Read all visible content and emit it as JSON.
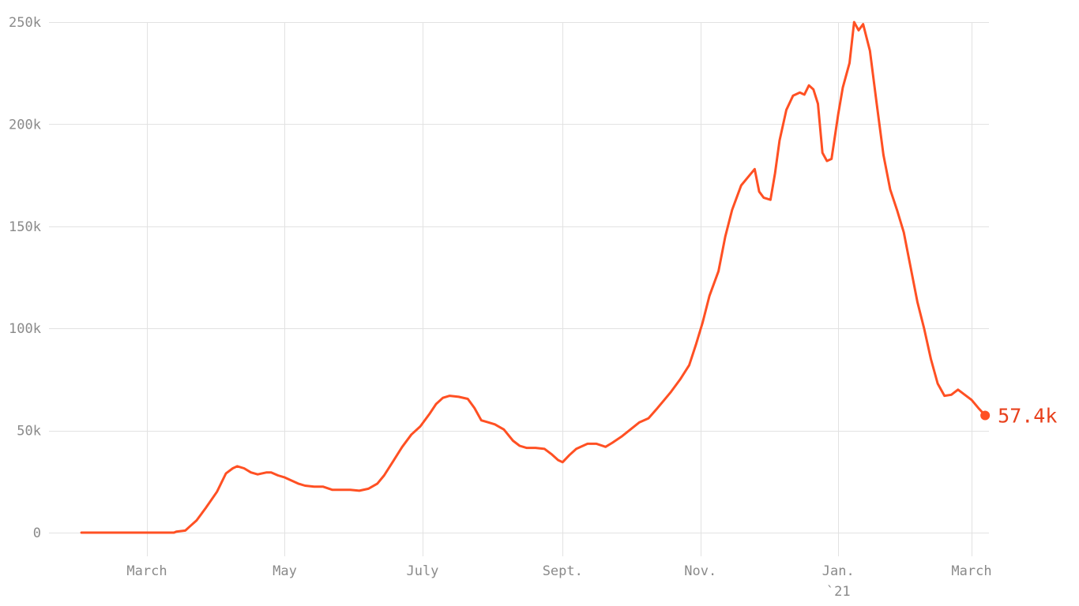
{
  "chart_data": {
    "type": "line",
    "x_unit": "date",
    "ylim": [
      0,
      250000
    ],
    "y_ticks": [
      {
        "value": 0,
        "label": "0"
      },
      {
        "value": 50000,
        "label": "50k"
      },
      {
        "value": 100000,
        "label": "100k"
      },
      {
        "value": 150000,
        "label": "150k"
      },
      {
        "value": 200000,
        "label": "200k"
      },
      {
        "value": 250000,
        "label": "250k"
      }
    ],
    "x_ticks": [
      {
        "date": "2020-03-01",
        "label": "March",
        "sublabel": ""
      },
      {
        "date": "2020-05-01",
        "label": "May",
        "sublabel": ""
      },
      {
        "date": "2020-07-01",
        "label": "July",
        "sublabel": ""
      },
      {
        "date": "2020-09-01",
        "label": "Sept.",
        "sublabel": ""
      },
      {
        "date": "2020-11-01",
        "label": "Nov.",
        "sublabel": ""
      },
      {
        "date": "2021-01-01",
        "label": "Jan.",
        "sublabel": "`21"
      },
      {
        "date": "2021-03-01",
        "label": "March",
        "sublabel": ""
      }
    ],
    "grid": true,
    "line_color": "#ff5023",
    "end_label": "57.4k",
    "end_label_color": "#e8401c",
    "series": [
      {
        "x": [
          "2020-02-01",
          "2020-02-10",
          "2020-02-20",
          "2020-03-01",
          "2020-03-13",
          "2020-03-14",
          "2020-03-18",
          "2020-03-20",
          "2020-03-23",
          "2020-03-27",
          "2020-04-01",
          "2020-04-05",
          "2020-04-08",
          "2020-04-10",
          "2020-04-13",
          "2020-04-16",
          "2020-04-19",
          "2020-04-23",
          "2020-04-25",
          "2020-04-28",
          "2020-05-01",
          "2020-05-07",
          "2020-05-10",
          "2020-05-14",
          "2020-05-18",
          "2020-05-22",
          "2020-05-26",
          "2020-05-30",
          "2020-06-03",
          "2020-06-07",
          "2020-06-11",
          "2020-06-14",
          "2020-06-18",
          "2020-06-22",
          "2020-06-26",
          "2020-06-30",
          "2020-07-04",
          "2020-07-07",
          "2020-07-10",
          "2020-07-13",
          "2020-07-17",
          "2020-07-21",
          "2020-07-24",
          "2020-07-27",
          "2020-07-30",
          "2020-08-02",
          "2020-08-06",
          "2020-08-10",
          "2020-08-13",
          "2020-08-16",
          "2020-08-20",
          "2020-08-24",
          "2020-08-27",
          "2020-08-30",
          "2020-09-01",
          "2020-09-04",
          "2020-09-07",
          "2020-09-09",
          "2020-09-12",
          "2020-09-16",
          "2020-09-20",
          "2020-09-23",
          "2020-09-27",
          "2020-10-01",
          "2020-10-05",
          "2020-10-09",
          "2020-10-13",
          "2020-10-16",
          "2020-10-19",
          "2020-10-23",
          "2020-10-27",
          "2020-10-30",
          "2020-11-02",
          "2020-11-05",
          "2020-11-09",
          "2020-11-12",
          "2020-11-15",
          "2020-11-19",
          "2020-11-22",
          "2020-11-25",
          "2020-11-27",
          "2020-11-29",
          "2020-12-02",
          "2020-12-04",
          "2020-12-06",
          "2020-12-09",
          "2020-12-12",
          "2020-12-15",
          "2020-12-17",
          "2020-12-19",
          "2020-12-21",
          "2020-12-23",
          "2020-12-25",
          "2020-12-27",
          "2020-12-29",
          "2021-01-01",
          "2021-01-03",
          "2021-01-06",
          "2021-01-08",
          "2021-01-10",
          "2021-01-12",
          "2021-01-15",
          "2021-01-18",
          "2021-01-21",
          "2021-01-24",
          "2021-01-27",
          "2021-01-30",
          "2021-02-02",
          "2021-02-05",
          "2021-02-08",
          "2021-02-11",
          "2021-02-14",
          "2021-02-17",
          "2021-02-20",
          "2021-02-23",
          "2021-02-26",
          "2021-03-01",
          "2021-03-04",
          "2021-03-07"
        ],
        "y": [
          0,
          0,
          0,
          0,
          0,
          500,
          1000,
          3000,
          6000,
          12000,
          20000,
          29000,
          31500,
          32500,
          31500,
          29500,
          28500,
          29500,
          29500,
          28000,
          27000,
          24000,
          23000,
          22500,
          22500,
          21000,
          21000,
          21000,
          20500,
          21500,
          24000,
          28000,
          35000,
          42000,
          48000,
          52000,
          58000,
          63000,
          66000,
          67000,
          66500,
          65500,
          61000,
          55000,
          54000,
          53000,
          50500,
          45000,
          42500,
          41500,
          41500,
          41000,
          38500,
          35500,
          34500,
          38000,
          41000,
          42000,
          43500,
          43500,
          42000,
          44000,
          47000,
          50500,
          54000,
          56000,
          61000,
          65000,
          69000,
          75000,
          82000,
          92000,
          103000,
          116000,
          128000,
          145000,
          158000,
          170000,
          174000,
          178000,
          167000,
          164000,
          163000,
          176000,
          192000,
          207000,
          214000,
          215500,
          214500,
          219000,
          217000,
          210000,
          186000,
          182000,
          183000,
          205000,
          218000,
          230000,
          250000,
          246000,
          249000,
          236000,
          210000,
          185000,
          168000,
          158000,
          147000,
          130000,
          113000,
          100000,
          85000,
          73000,
          67000,
          67500,
          70000,
          67500,
          65000,
          61000,
          57400
        ]
      }
    ]
  }
}
